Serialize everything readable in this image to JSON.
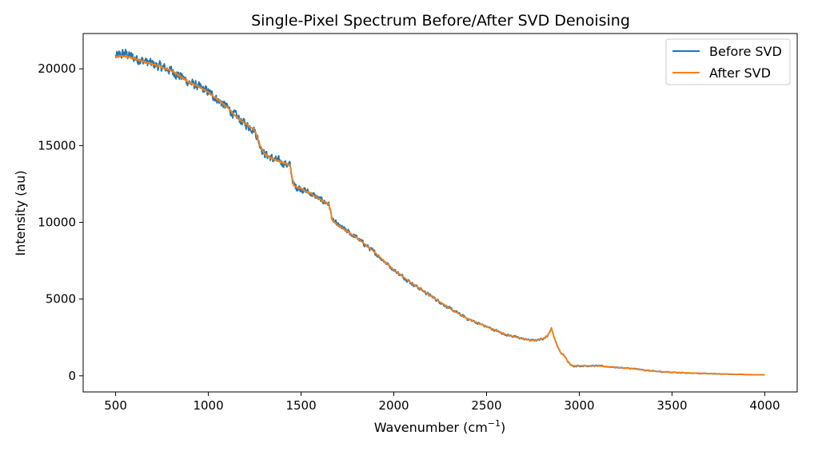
{
  "chart_data": {
    "type": "line",
    "title": "Single-Pixel Spectrum Before/After SVD Denoising",
    "xlabel": "Wavenumber (cm",
    "xlabel_sup": "−1",
    "xlabel_end": ")",
    "ylabel": "Intensity (au)",
    "xlim": [
      325,
      4175
    ],
    "ylim": [
      -1050,
      22300
    ],
    "xticks": [
      500,
      1000,
      1500,
      2000,
      2500,
      3000,
      3500,
      4000
    ],
    "xtick_labels": [
      "500",
      "1000",
      "1500",
      "2000",
      "2500",
      "3000",
      "3500",
      "4000"
    ],
    "yticks": [
      0,
      5000,
      10000,
      15000,
      20000
    ],
    "ytick_labels": [
      "0",
      "5000",
      "10000",
      "15000",
      "20000"
    ],
    "grid": false,
    "legend_position": "top-right",
    "series": [
      {
        "name": "Before SVD",
        "color": "#1f77b4",
        "noise": "high",
        "x": [
          500,
          550,
          600,
          700,
          800,
          900,
          1000,
          1100,
          1150,
          1200,
          1250,
          1280,
          1300,
          1350,
          1400,
          1440,
          1460,
          1480,
          1550,
          1600,
          1650,
          1670,
          1700,
          1800,
          1900,
          2000,
          2100,
          2200,
          2300,
          2400,
          2500,
          2600,
          2700,
          2750,
          2800,
          2830,
          2850,
          2865,
          2880,
          2900,
          2920,
          2940,
          2960,
          3000,
          3100,
          3200,
          3300,
          3400,
          3500,
          3600,
          3700,
          3800,
          3900,
          4000
        ],
        "y": [
          20800,
          21000,
          20700,
          20300,
          19900,
          19100,
          18500,
          17500,
          16900,
          16400,
          16000,
          15000,
          14500,
          14100,
          13900,
          13700,
          12400,
          12300,
          11900,
          11500,
          11200,
          10100,
          9800,
          9000,
          8000,
          6900,
          6000,
          5200,
          4400,
          3700,
          3200,
          2700,
          2400,
          2300,
          2400,
          2600,
          3100,
          2500,
          2000,
          1500,
          1300,
          900,
          650,
          650,
          650,
          550,
          450,
          300,
          230,
          180,
          140,
          110,
          80,
          60
        ]
      },
      {
        "name": "After SVD",
        "color": "#ff7f0e",
        "noise": "low",
        "x": [
          500,
          550,
          600,
          700,
          800,
          900,
          1000,
          1100,
          1150,
          1200,
          1250,
          1280,
          1300,
          1350,
          1400,
          1440,
          1460,
          1480,
          1550,
          1600,
          1650,
          1670,
          1700,
          1800,
          1900,
          2000,
          2100,
          2200,
          2300,
          2400,
          2500,
          2600,
          2700,
          2750,
          2800,
          2830,
          2850,
          2865,
          2880,
          2900,
          2920,
          2940,
          2960,
          3000,
          3100,
          3200,
          3300,
          3400,
          3500,
          3600,
          3700,
          3800,
          3900,
          4000
        ],
        "y": [
          20800,
          20850,
          20650,
          20300,
          19900,
          19100,
          18500,
          17500,
          16900,
          16400,
          16000,
          15000,
          14500,
          14100,
          13900,
          13700,
          12400,
          12300,
          11900,
          11500,
          11200,
          10100,
          9800,
          9000,
          8000,
          6900,
          6000,
          5200,
          4400,
          3700,
          3200,
          2700,
          2400,
          2300,
          2400,
          2600,
          3100,
          2500,
          2000,
          1500,
          1300,
          900,
          650,
          650,
          650,
          550,
          450,
          300,
          230,
          180,
          140,
          110,
          80,
          60
        ]
      }
    ]
  }
}
